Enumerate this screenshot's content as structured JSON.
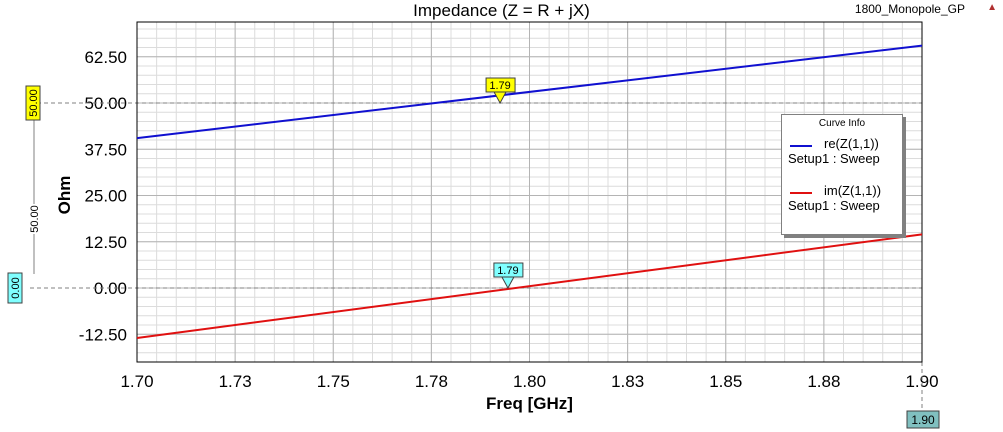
{
  "window": {
    "title": "Impedance (Z = R + jX)",
    "project_name": "1800_Monopole_GP"
  },
  "legend": {
    "title": "Curve Info",
    "entries": [
      {
        "name": "re(Z(1,1))",
        "setup": "Setup1 : Sweep",
        "color": "#1010d0"
      },
      {
        "name": "im(Z(1,1))",
        "setup": "Setup1 : Sweep",
        "color": "#e01010"
      }
    ]
  },
  "markers": {
    "re_marker_label": "1.79",
    "im_marker_label": "1.79",
    "y_marker_top": "50.00",
    "y_marker_bottom": "0.00",
    "y_delta_label": "50.00",
    "x_marker_label": "1.90"
  },
  "chart_data": {
    "type": "line",
    "title": "Impedance (Z = R + jX)",
    "xlabel": "Freq [GHz]",
    "ylabel": "Ohm",
    "xlim": [
      1.7,
      1.9
    ],
    "ylim": [
      -15,
      70
    ],
    "x_ticks": [
      "1.70",
      "1.73",
      "1.75",
      "1.78",
      "1.80",
      "1.83",
      "1.85",
      "1.88",
      "1.90"
    ],
    "y_ticks": [
      "62.50",
      "50.00",
      "37.50",
      "25.00",
      "12.50",
      "0.00",
      "-12.50"
    ],
    "grid": true,
    "legend_position": "right",
    "series": [
      {
        "name": "re(Z(1,1))",
        "x": [
          1.7,
          1.9
        ],
        "y": [
          40.5,
          65.5
        ],
        "color": "#1010d0"
      },
      {
        "name": "im(Z(1,1))",
        "x": [
          1.7,
          1.9
        ],
        "y": [
          -13.5,
          14.5
        ],
        "color": "#e01010"
      }
    ]
  }
}
